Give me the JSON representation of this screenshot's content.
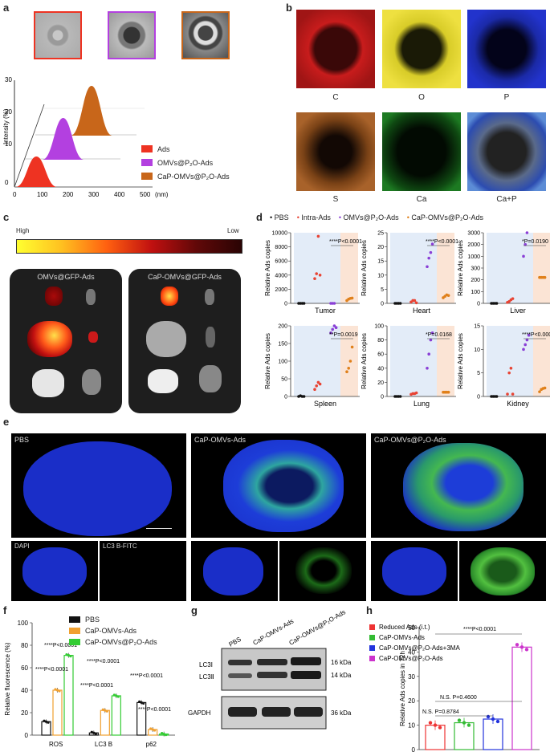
{
  "panels": {
    "a": {
      "label": "a",
      "legend": [
        "Ads",
        "OMVs@P₂O-Ads",
        "CaP-OMVs@P₂O-Ads"
      ],
      "legend_colors": [
        "#ee3322",
        "#b340e0",
        "#c8661a"
      ],
      "yaxis_label": "Intensity (%)",
      "xunit": "(nm)",
      "yticks": [
        "30",
        "20",
        "10",
        "0"
      ],
      "xticks": [
        "0",
        "100",
        "200",
        "300",
        "400",
        "500"
      ]
    },
    "b": {
      "label": "b",
      "maps": [
        {
          "name": "C",
          "color": "#e52222"
        },
        {
          "name": "O",
          "color": "#f2e233"
        },
        {
          "name": "P",
          "color": "#2233cc"
        },
        {
          "name": "S",
          "color": "#e08a3a"
        },
        {
          "name": "Ca",
          "color": "#33cc33"
        },
        {
          "name": "Ca+P",
          "color": "#4466cc"
        }
      ]
    },
    "c": {
      "label": "c",
      "high": "High",
      "low": "Low",
      "left_title": "OMVs@GFP-Ads",
      "right_title": "CaP-OMVs@GFP-Ads"
    },
    "d": {
      "label": "d",
      "legend": [
        "PBS",
        "Intra-Ads",
        "OMVs@P₂O-Ads",
        "CaP-OMVs@P₂O-Ads"
      ],
      "legend_colors": [
        "#111111",
        "#e84434",
        "#8a3fd6",
        "#e0801a"
      ],
      "ylabel": "Relative Ads copies",
      "subplots": [
        {
          "organ": "Tumor",
          "yticks": [
            "10000",
            "8000",
            "6000",
            "4000",
            "2000",
            "0"
          ],
          "stat": "****P<0.0001"
        },
        {
          "organ": "Heart",
          "yticks": [
            "25",
            "20",
            "15",
            "10",
            "5",
            "0"
          ],
          "stat": "****P<0.0001"
        },
        {
          "organ": "Liver",
          "yticks": [
            "3000",
            "2000",
            "1000",
            "300",
            "200",
            "100",
            "0"
          ],
          "stat": "*P=0.0190"
        },
        {
          "organ": "Spleen",
          "yticks": [
            "200",
            "150",
            "100",
            "50",
            "0"
          ],
          "stat": "**P=0.0019"
        },
        {
          "organ": "Lung",
          "yticks": [
            "100",
            "80",
            "60",
            "40",
            "20",
            "0"
          ],
          "stat": "*P=0.0168"
        },
        {
          "organ": "Kidney",
          "yticks": [
            "15",
            "10",
            "5",
            "0"
          ],
          "stat": "****P<0.0001"
        }
      ]
    },
    "e": {
      "label": "e",
      "groups": [
        "PBS",
        "CaP-OMVs-Ads",
        "CaP-OMVs@P₂O-Ads"
      ],
      "sub_labels": [
        "DAPI",
        "LC3 B-FITC"
      ]
    },
    "f": {
      "label": "f",
      "ylabel": "Relative fluorescence (%)",
      "legend": [
        "PBS",
        "CaP-OMVs-Ads",
        "CaP-OMVs@P₂O-Ads"
      ],
      "legend_colors": [
        "#111111",
        "#f0a030",
        "#33cc33"
      ],
      "yticks": [
        "100",
        "80",
        "60",
        "40",
        "20",
        "0"
      ],
      "categories": [
        "ROS",
        "LC3 B",
        "p62"
      ],
      "stats": [
        "****P<0.0001",
        "****P<0.0001",
        "****P<0.0001",
        "****P<0.0001",
        "****P<0.0001",
        "****P<0.0001"
      ]
    },
    "g": {
      "label": "g",
      "lanes": [
        "PBS",
        "CaP-OMVs-Ads",
        "CaP-OMVs@P₂O-Ads"
      ],
      "band_labels": [
        "LC3Ⅰ",
        "LC3Ⅱ",
        "GAPDH"
      ],
      "kda": [
        "16 kDa",
        "14 kDa",
        "36 kDa"
      ]
    },
    "h": {
      "label": "h",
      "ylabel": "Relative Ads copies in 72h",
      "legend": [
        "Reduced Ads (i.t.)",
        "CaP-OMVs-Ads",
        "CaP-OMVs@P₂O-Ads+3MA",
        "CaP-OMVs@P₂O-Ads"
      ],
      "legend_colors": [
        "#ee3333",
        "#33bb33",
        "#2233dd",
        "#cc33cc"
      ],
      "yticks": [
        "50",
        "40",
        "30",
        "20",
        "10",
        "0"
      ],
      "stats": [
        "****P<0.0001",
        "N.S. P=0.4600",
        "N.S. P=0.8784"
      ]
    }
  },
  "chart_data": [
    {
      "type": "area",
      "title": "",
      "xlabel": "(nm)",
      "ylabel": "Intensity (%)",
      "xlim": [
        0,
        500
      ],
      "ylim": [
        0,
        30
      ],
      "series": [
        {
          "name": "Ads",
          "peak_x": 100,
          "peak_y": 12
        },
        {
          "name": "OMVs@P₂O-Ads",
          "peak_x": 200,
          "peak_y": 20
        },
        {
          "name": "CaP-OMVs@P₂O-Ads",
          "peak_x": 300,
          "peak_y": 28
        }
      ]
    },
    {
      "type": "bar",
      "title": "",
      "ylabel": "Relative fluorescence (%)",
      "ylim": [
        0,
        100
      ],
      "categories": [
        "ROS",
        "LC3 B",
        "p62"
      ],
      "series": [
        {
          "name": "PBS",
          "values": [
            12,
            2,
            29
          ]
        },
        {
          "name": "CaP-OMVs-Ads",
          "values": [
            40,
            22,
            5
          ]
        },
        {
          "name": "CaP-OMVs@P₂O-Ads",
          "values": [
            71,
            35,
            1
          ]
        }
      ]
    },
    {
      "type": "bar",
      "title": "",
      "ylabel": "Relative Ads copies in 72h",
      "ylim": [
        0,
        50
      ],
      "categories": [
        "Reduced Ads (i.t.)",
        "CaP-OMVs-Ads",
        "CaP-OMVs@P₂O-Ads+3MA",
        "CaP-OMVs@P₂O-Ads"
      ],
      "values": [
        10,
        11,
        12.5,
        42
      ]
    },
    {
      "type": "scatter",
      "title": "",
      "ylabel": "Relative Ads copies",
      "subplots": [
        {
          "organ": "Tumor",
          "series": [
            [
              0,
              0,
              0,
              0
            ],
            [
              3500,
              4200,
              9500,
              4000
            ],
            [
              0,
              0,
              0
            ],
            [
              400,
              600,
              700,
              750
            ]
          ]
        },
        {
          "organ": "Heart",
          "series": [
            [
              0,
              0,
              0,
              0
            ],
            [
              0.5,
              1,
              1,
              0.2
            ],
            [
              13,
              16,
              18,
              21
            ],
            [
              2,
              2.5,
              3,
              2.8
            ]
          ]
        },
        {
          "organ": "Liver",
          "series": [
            [
              0,
              0,
              0,
              0
            ],
            [
              40,
              80,
              150,
              200
            ],
            [
              2000,
              2500,
              3000
            ],
            [
              1100,
              1100,
              1100,
              1100
            ]
          ]
        },
        {
          "organ": "Spleen",
          "series": [
            [
              0,
              2,
              0,
              0
            ],
            [
              20,
              30,
              40,
              35
            ],
            [
              180,
              190,
              200,
              195
            ],
            [
              70,
              80,
              100,
              140
            ]
          ]
        },
        {
          "organ": "Lung",
          "series": [
            [
              0,
              0,
              0,
              0
            ],
            [
              3,
              4,
              4,
              5
            ],
            [
              40,
              60,
              80,
              90
            ],
            [
              6,
              6,
              6,
              6
            ]
          ]
        },
        {
          "organ": "Kidney",
          "series": [
            [
              0,
              0,
              0,
              0
            ],
            [
              0.5,
              5,
              6,
              0.5
            ],
            [
              10,
              11,
              12,
              13
            ],
            [
              1,
              1.5,
              1.7,
              1.8
            ]
          ]
        }
      ]
    }
  ]
}
